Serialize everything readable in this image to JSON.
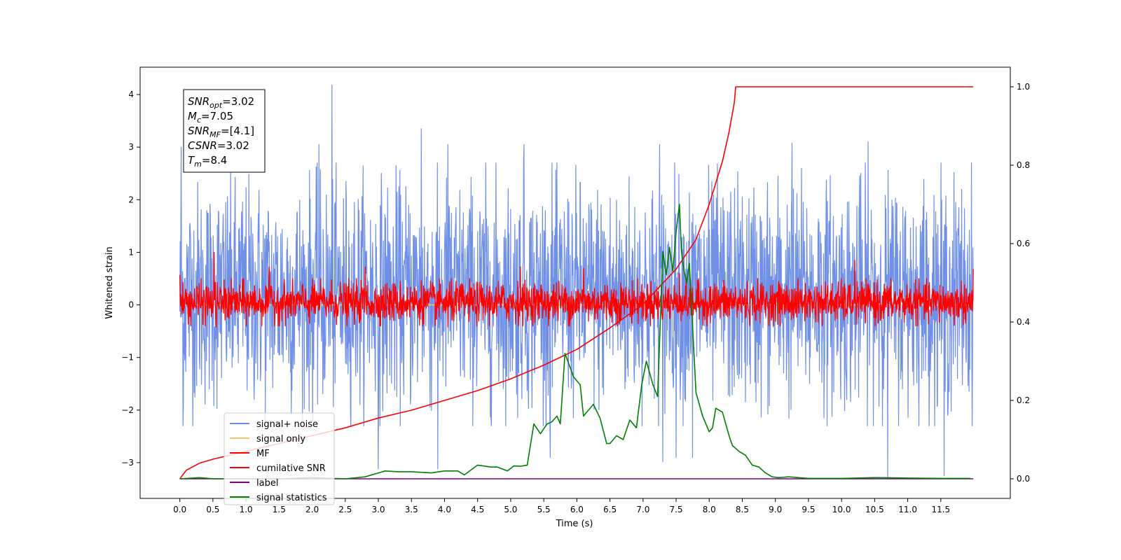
{
  "chart_data": {
    "type": "line",
    "xlabel": "Time (s)",
    "ylabel": "Whitened strain",
    "xlim": [
      -0.6,
      12.55
    ],
    "ylim": [
      -3.68,
      4.52
    ],
    "y2lim": [
      -0.05,
      1.05
    ],
    "x_ticks": [
      0.0,
      0.5,
      1.0,
      1.5,
      2.0,
      2.5,
      3.0,
      3.5,
      4.0,
      4.5,
      5.0,
      5.5,
      6.0,
      6.5,
      7.0,
      7.5,
      8.0,
      8.5,
      9.0,
      9.5,
      10.0,
      10.5,
      11.0,
      11.5
    ],
    "x_tick_labels": [
      "0.0",
      "0.5",
      "1.0",
      "1.5",
      "2.0",
      "2.5",
      "3.0",
      "3.5",
      "4.0",
      "4.5",
      "5.0",
      "5.5",
      "6.0",
      "6.5",
      "7.0",
      "7.5",
      "8.0",
      "8.5",
      "9.0",
      "9.5",
      "10.0",
      "10.5",
      "11.0",
      "11.5"
    ],
    "y_ticks": [
      -3,
      -2,
      -1,
      0,
      1,
      2,
      3,
      4
    ],
    "y_tick_labels": [
      "−3",
      "−2",
      "−1",
      "0",
      "1",
      "2",
      "3",
      "4"
    ],
    "y2_ticks": [
      0.0,
      0.2,
      0.4,
      0.6,
      0.8,
      1.0
    ],
    "y2_tick_labels": [
      "0.0",
      "0.2",
      "0.4",
      "0.6",
      "0.8",
      "1.0"
    ],
    "grid": false,
    "legend_position": "lower-left",
    "annotation": [
      {
        "sym": "SNR",
        "sub": "opt",
        "val": "=3.02"
      },
      {
        "sym": "M",
        "sub": "c",
        "val": "=7.05"
      },
      {
        "sym": "SNR",
        "sub": "MF",
        "val": "=[4.1]"
      },
      {
        "sym": "CSNR",
        "sub": "",
        "val": "=3.02"
      },
      {
        "sym": "T",
        "sub": "m",
        "val": "=8.4"
      }
    ],
    "series": [
      {
        "name": "signal+ noise",
        "axis": "left",
        "color": "#7090e8",
        "style": "noise",
        "x_range": [
          0.0,
          11.99
        ],
        "typical_range": [
          -2.3,
          2.7
        ],
        "spikes": [
          [
            0.02,
            3.0
          ],
          [
            0.05,
            -2.3
          ],
          [
            2.3,
            4.18
          ],
          [
            3.65,
            3.35
          ],
          [
            2.1,
            3.05
          ],
          [
            4.05,
            3.05
          ],
          [
            5.2,
            3.05
          ],
          [
            7.25,
            3.05
          ],
          [
            9.25,
            3.08
          ],
          [
            10.4,
            3.1
          ],
          [
            3.0,
            -3.12
          ],
          [
            3.9,
            -3.12
          ],
          [
            5.6,
            -2.9
          ],
          [
            7.3,
            -2.98
          ],
          [
            7.5,
            -2.9
          ],
          [
            7.75,
            -2.9
          ],
          [
            10.7,
            -3.3
          ],
          [
            11.55,
            -3.25
          ]
        ]
      },
      {
        "name": "signal only",
        "axis": "left",
        "color": "#ffc067",
        "x": [
          0.0,
          11.99
        ],
        "y": [
          0.0,
          0.0
        ]
      },
      {
        "name": "MF",
        "axis": "left",
        "color": "#ff0000",
        "style": "noise",
        "x_range": [
          0.0,
          11.99
        ],
        "typical_range": [
          -0.4,
          0.5
        ],
        "spikes": [
          [
            0.0,
            0.57
          ],
          [
            0.52,
            1.0
          ],
          [
            1.35,
            0.72
          ],
          [
            2.8,
            0.72
          ],
          [
            5.15,
            0.72
          ],
          [
            6.1,
            0.7
          ],
          [
            7.55,
            0.6
          ],
          [
            10.2,
            0.85
          ],
          [
            11.99,
            0.68
          ],
          [
            0.55,
            -0.42
          ],
          [
            4.05,
            -0.42
          ]
        ]
      },
      {
        "name": "cumilative SNR",
        "axis": "right",
        "color": "#ff0000",
        "x": [
          0.0,
          0.1,
          0.3,
          0.5,
          1.0,
          1.5,
          2.0,
          2.5,
          3.0,
          3.5,
          4.0,
          4.5,
          5.0,
          5.5,
          6.0,
          6.5,
          7.0,
          7.5,
          7.8,
          8.0,
          8.2,
          8.3,
          8.38,
          8.4,
          10.0,
          11.99
        ],
        "y": [
          0.0,
          0.022,
          0.04,
          0.05,
          0.07,
          0.09,
          0.11,
          0.13,
          0.155,
          0.175,
          0.2,
          0.225,
          0.255,
          0.29,
          0.33,
          0.385,
          0.445,
          0.535,
          0.61,
          0.7,
          0.81,
          0.885,
          0.96,
          1.0,
          1.0,
          1.0
        ]
      },
      {
        "name": "label",
        "axis": "right",
        "color": "#800080",
        "x": [
          0.0,
          11.99
        ],
        "y": [
          0.0,
          0.0
        ]
      },
      {
        "name": "signal statistics",
        "axis": "right",
        "color": "#008000",
        "x": [
          0.0,
          0.3,
          0.5,
          1.0,
          1.5,
          2.0,
          2.5,
          2.8,
          3.0,
          3.1,
          3.3,
          3.5,
          3.8,
          4.0,
          4.2,
          4.3,
          4.5,
          4.7,
          4.8,
          4.95,
          5.05,
          5.15,
          5.25,
          5.35,
          5.45,
          5.55,
          5.62,
          5.7,
          5.75,
          5.82,
          5.95,
          6.05,
          6.1,
          6.25,
          6.35,
          6.45,
          6.5,
          6.6,
          6.7,
          6.8,
          6.9,
          6.98,
          7.05,
          7.15,
          7.22,
          7.3,
          7.35,
          7.4,
          7.45,
          7.5,
          7.55,
          7.58,
          7.62,
          7.66,
          7.7,
          7.8,
          7.9,
          8.0,
          8.05,
          8.1,
          8.2,
          8.3,
          8.35,
          8.45,
          8.55,
          8.65,
          8.75,
          8.85,
          8.95,
          9.05,
          9.2,
          9.5,
          10.0,
          10.5,
          11.0,
          11.5,
          11.95
        ],
        "y": [
          0.0,
          0.003,
          0.0,
          0.0,
          0.0,
          0.003,
          0.0,
          0.005,
          0.015,
          0.02,
          0.018,
          0.018,
          0.015,
          0.02,
          0.02,
          0.01,
          0.035,
          0.03,
          0.03,
          0.02,
          0.033,
          0.032,
          0.035,
          0.14,
          0.115,
          0.14,
          0.145,
          0.16,
          0.14,
          0.32,
          0.26,
          0.24,
          0.16,
          0.19,
          0.155,
          0.09,
          0.09,
          0.11,
          0.1,
          0.15,
          0.13,
          0.24,
          0.3,
          0.24,
          0.21,
          0.58,
          0.52,
          0.59,
          0.53,
          0.63,
          0.7,
          0.58,
          0.53,
          0.5,
          0.55,
          0.22,
          0.16,
          0.12,
          0.13,
          0.18,
          0.17,
          0.11,
          0.085,
          0.07,
          0.06,
          0.035,
          0.03,
          0.015,
          0.005,
          0.003,
          0.005,
          0.001,
          0.001,
          0.003,
          0.002,
          0.001,
          0.001
        ]
      }
    ]
  }
}
